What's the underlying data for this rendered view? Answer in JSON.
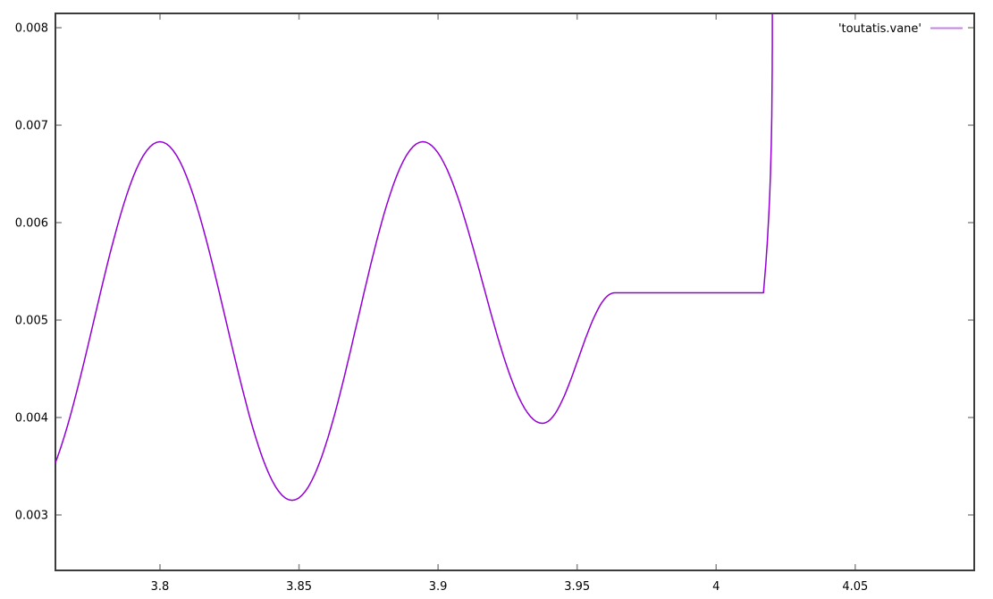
{
  "window": {
    "background": "#ffffff"
  },
  "chart_data": {
    "type": "line",
    "title": "",
    "xlabel": "",
    "ylabel": "",
    "grid": false,
    "legend_position": "inside top right",
    "x_range": [
      3.7624,
      4.0928
    ],
    "y_range": [
      0.002431,
      0.008147
    ],
    "x_ticks": [
      {
        "value": 3.8,
        "label": "3.8"
      },
      {
        "value": 3.85,
        "label": "3.85"
      },
      {
        "value": 3.9,
        "label": "3.9"
      },
      {
        "value": 3.95,
        "label": "3.95"
      },
      {
        "value": 4,
        "label": "4"
      },
      {
        "value": 4.05,
        "label": "4.05"
      }
    ],
    "y_ticks": [
      {
        "value": 0.003,
        "label": "0.003"
      },
      {
        "value": 0.004,
        "label": "0.004"
      },
      {
        "value": 0.005,
        "label": "0.005"
      },
      {
        "value": 0.006,
        "label": "0.006"
      },
      {
        "value": 0.007,
        "label": "0.007"
      },
      {
        "value": 0.008,
        "label": "0.008"
      }
    ],
    "colors": {
      "background": "#ffffff",
      "border": "#3c3c3c",
      "ticks": "#8a8a8a",
      "text": "#000000",
      "legend_sample": "#c583ea"
    },
    "series": [
      {
        "name": "'toutatis.vane'",
        "color": "#9400d3",
        "key_points": [
          {
            "x": 3.7624,
            "y": 0.00358,
            "feature": "enters left edge rising steeply"
          },
          {
            "x": 3.8,
            "y": 0.00683,
            "feature": "local maximum"
          },
          {
            "x": 3.8475,
            "y": 0.00315,
            "feature": "global minimum"
          },
          {
            "x": 3.8945,
            "y": 0.00683,
            "feature": "local maximum"
          },
          {
            "x": 3.9375,
            "y": 0.00394,
            "feature": "local minimum"
          },
          {
            "x": 3.9635,
            "y": 0.00528,
            "feature": "plateau begins"
          },
          {
            "x": 4.017,
            "y": 0.00528,
            "feature": "plateau ends"
          },
          {
            "x": 4.0202,
            "y": 0.008147,
            "feature": "near-vertical spike exits top edge of plot"
          }
        ],
        "model": {
          "extrema": [
            [
              3.7524,
              0.00315
            ],
            [
              3.8,
              0.00683
            ],
            [
              3.8475,
              0.00315
            ],
            [
              3.8945,
              0.00683
            ],
            [
              3.9375,
              0.00394
            ],
            [
              3.9635,
              0.00528
            ]
          ],
          "plateau_y": 0.00528,
          "plateau_end_x": 4.017,
          "spike_top": [
            4.0202,
            0.0083
          ]
        }
      }
    ]
  }
}
